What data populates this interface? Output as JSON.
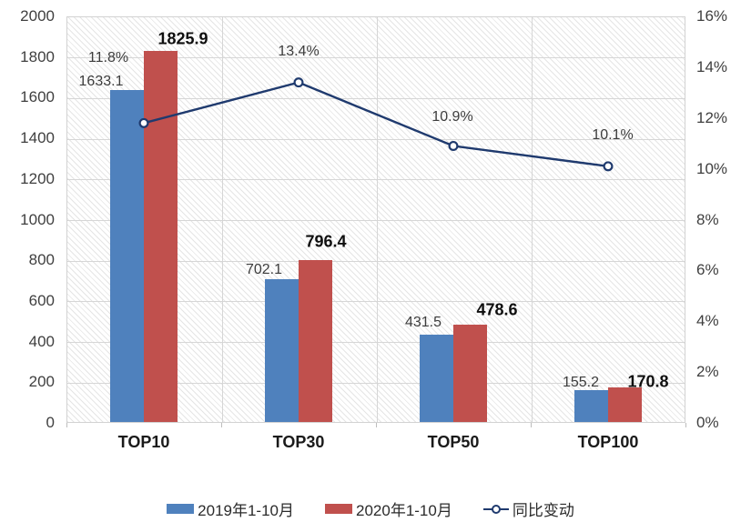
{
  "chart_data": {
    "type": "combo-bar-line",
    "categories": [
      "TOP10",
      "TOP30",
      "TOP50",
      "TOP100"
    ],
    "series": [
      {
        "name": "2019年1-10月",
        "type": "bar",
        "color": "#4F81BD",
        "axis": "left",
        "values": [
          1633.1,
          702.1,
          431.5,
          155.2
        ],
        "data_labels": [
          "1633.1",
          "702.1",
          "431.5",
          "155.2"
        ]
      },
      {
        "name": "2020年1-10月",
        "type": "bar",
        "color": "#C0504D",
        "axis": "left",
        "values": [
          1825.9,
          796.4,
          478.6,
          170.8
        ],
        "data_labels": [
          "1825.9",
          "796.4",
          "478.6",
          "170.8"
        ]
      },
      {
        "name": "同比变动",
        "type": "line",
        "color": "#1F3A6E",
        "axis": "right",
        "values": [
          11.8,
          13.4,
          10.9,
          10.1
        ],
        "data_labels": [
          "11.8%",
          "13.4%",
          "10.9%",
          "10.1%"
        ]
      }
    ],
    "left_axis": {
      "min": 0,
      "max": 2000,
      "step": 200,
      "ticks": [
        "2000",
        "1800",
        "1600",
        "1400",
        "1200",
        "1000",
        "800",
        "600",
        "400",
        "200",
        "0"
      ]
    },
    "right_axis": {
      "min": 0,
      "max": 16,
      "step": 2,
      "ticks": [
        "16%",
        "14%",
        "12%",
        "10%",
        "8%",
        "6%",
        "4%",
        "2%",
        "0%"
      ]
    },
    "grid": true,
    "plot_background": "diagonal-hatch",
    "legend_position": "bottom"
  }
}
